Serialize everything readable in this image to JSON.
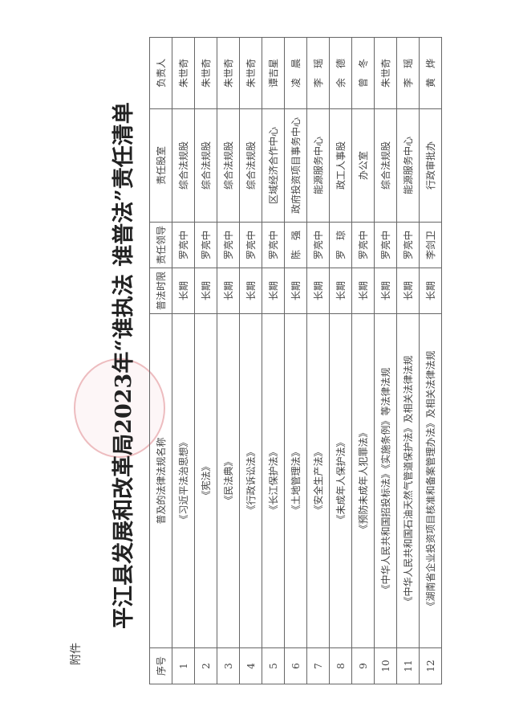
{
  "attachment_label": "附件",
  "title": "平江县发展和改革局2023年“谁执法 谁普法”责任清单",
  "seal_color": "#d2505a",
  "table": {
    "headers": [
      "序号",
      "普及的法律法规名称",
      "普法时限",
      "责任领导",
      "责任股室",
      "负责人"
    ],
    "rows": [
      [
        "1",
        "《习近平法治思想》",
        "长期",
        "罗亮中",
        "综合法规股",
        "朱世奇"
      ],
      [
        "2",
        "《宪法》",
        "长期",
        "罗亮中",
        "综合法规股",
        "朱世奇"
      ],
      [
        "3",
        "《民法典》",
        "长期",
        "罗亮中",
        "综合法规股",
        "朱世奇"
      ],
      [
        "4",
        "《行政诉讼法》",
        "长期",
        "罗亮中",
        "综合法规股",
        "朱世奇"
      ],
      [
        "5",
        "《长江保护法》",
        "长期",
        "罗亮中",
        "区域经济合作中心",
        "谭吉星"
      ],
      [
        "6",
        "《土地管理法》",
        "长期",
        "陈　强",
        "政府投资项目事务中心",
        "凌　晨"
      ],
      [
        "7",
        "《安全生产法》",
        "长期",
        "罗亮中",
        "能源服务中心",
        "李　瑶"
      ],
      [
        "8",
        "《未成年人保护法》",
        "长期",
        "罗　琼",
        "政工人事股",
        "余　德"
      ],
      [
        "9",
        "《预防未成年人犯罪法》",
        "长期",
        "罗亮中",
        "办公室",
        "曾　冬"
      ],
      [
        "10",
        "《中华人民共和国招投标法》《实施条例》等法律法规",
        "长期",
        "罗亮中",
        "综合法规股",
        "朱世奇"
      ],
      [
        "11",
        "《中华人民共和国石油天然气管道保护法》及相关法律法规",
        "长期",
        "罗亮中",
        "能源服务中心",
        "李　瑶"
      ],
      [
        "12",
        "《湖南省企业投资项目核准和备案管理办法》及相关法律法规",
        "长期",
        "李剑卫",
        "行政审批办",
        "黄　烨"
      ]
    ]
  }
}
